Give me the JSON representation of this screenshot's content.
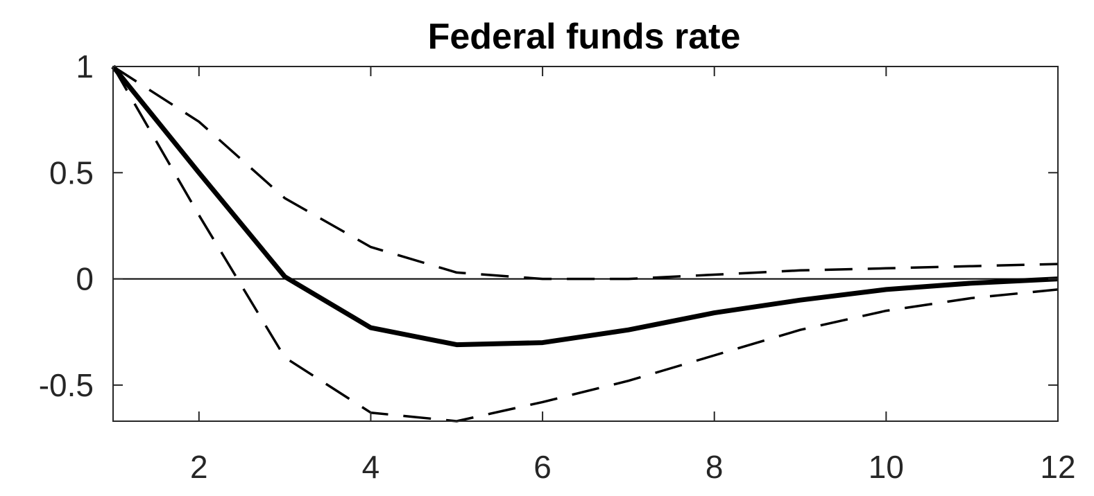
{
  "chart_data": {
    "type": "line",
    "title": "Federal funds rate",
    "xlabel": "",
    "ylabel": "",
    "xlim": [
      1,
      12
    ],
    "ylim": [
      -0.67,
      1.0
    ],
    "x": [
      1,
      2,
      3,
      4,
      5,
      6,
      7,
      8,
      9,
      10,
      11,
      12
    ],
    "x_ticks": [
      2,
      4,
      6,
      8,
      10,
      12
    ],
    "x_tick_labels": [
      "2",
      "4",
      "6",
      "8",
      "10",
      "12"
    ],
    "y_ticks": [
      1,
      0.5,
      0,
      -0.5
    ],
    "y_tick_labels": [
      "1",
      "0.5",
      "0",
      "-0.5"
    ],
    "grid": false,
    "zero_line": true,
    "series": [
      {
        "style": "solid",
        "color": "#000000",
        "values": [
          1.0,
          0.5,
          0.01,
          -0.23,
          -0.31,
          -0.3,
          -0.24,
          -0.16,
          -0.1,
          -0.05,
          -0.02,
          0.0
        ]
      },
      {
        "style": "dashed",
        "color": "#000000",
        "values": [
          1.0,
          0.74,
          0.38,
          0.15,
          0.03,
          0.0,
          0.0,
          0.02,
          0.04,
          0.05,
          0.06,
          0.07
        ]
      },
      {
        "style": "dashed",
        "color": "#000000",
        "values": [
          1.0,
          0.3,
          -0.37,
          -0.63,
          -0.67,
          -0.58,
          -0.48,
          -0.36,
          -0.24,
          -0.15,
          -0.09,
          -0.05
        ]
      }
    ]
  }
}
